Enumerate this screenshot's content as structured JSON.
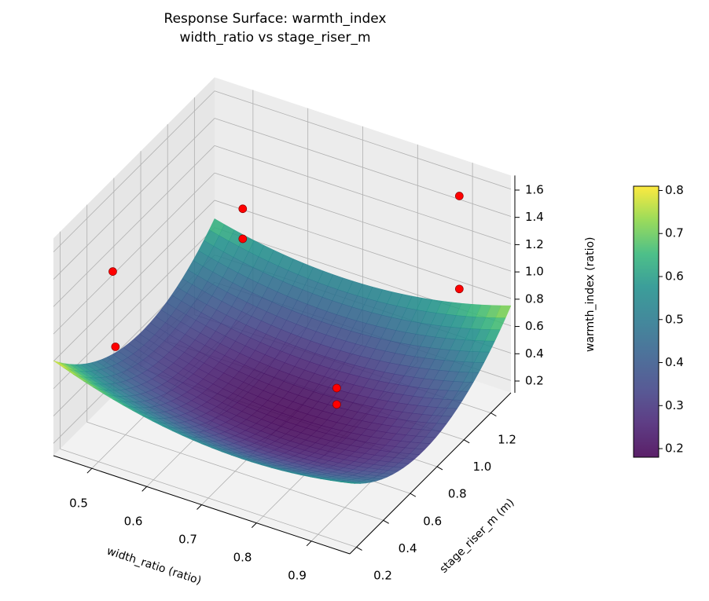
{
  "chart_data": {
    "type": "surface3d",
    "title": "Response Surface: warmth_index",
    "subtitle": "width_ratio vs stage_riser_m",
    "xlabel": "width_ratio (ratio)",
    "ylabel": "stage_riser_m (m)",
    "zlabel": "warmth_index (ratio)",
    "xlim": [
      0.43,
      0.97
    ],
    "ylim": [
      0.15,
      1.35
    ],
    "zlim": [
      0.11,
      1.7
    ],
    "xticks": [
      0.5,
      0.6,
      0.7,
      0.8,
      0.9
    ],
    "yticks": [
      0.2,
      0.4,
      0.6,
      0.8,
      1.0,
      1.2
    ],
    "zticks": [
      0.2,
      0.4,
      0.6,
      0.8,
      1.0,
      1.2,
      1.4,
      1.6
    ],
    "grid": true,
    "colormap": "viridis",
    "surface": {
      "form": "z = c0 + a(x-xc)^2 + b(y-yc)^2 + c(x-xc)(y-yc)",
      "c0": 0.19,
      "a": 2.2,
      "b": 1.0,
      "c": 0.4,
      "xc": 0.72,
      "yc": 0.75
    },
    "points": [
      {
        "x": 0.45,
        "y": 0.51,
        "z": 1.13
      },
      {
        "x": 0.45,
        "y": 0.53,
        "z": 0.56
      },
      {
        "x": 0.54,
        "y": 1.11,
        "z": 1.12
      },
      {
        "x": 0.54,
        "y": 1.11,
        "z": 0.9
      },
      {
        "x": 0.92,
        "y": 1.17,
        "z": 1.66
      },
      {
        "x": 0.92,
        "y": 1.17,
        "z": 0.98
      },
      {
        "x": 0.77,
        "y": 0.87,
        "z": 0.35
      },
      {
        "x": 0.77,
        "y": 0.87,
        "z": 0.23
      }
    ],
    "point_color": "#ff0000",
    "colorbar": {
      "range": [
        0.18,
        0.81
      ],
      "ticks": [
        0.2,
        0.3,
        0.4,
        0.5,
        0.6,
        0.7,
        0.8
      ]
    }
  }
}
